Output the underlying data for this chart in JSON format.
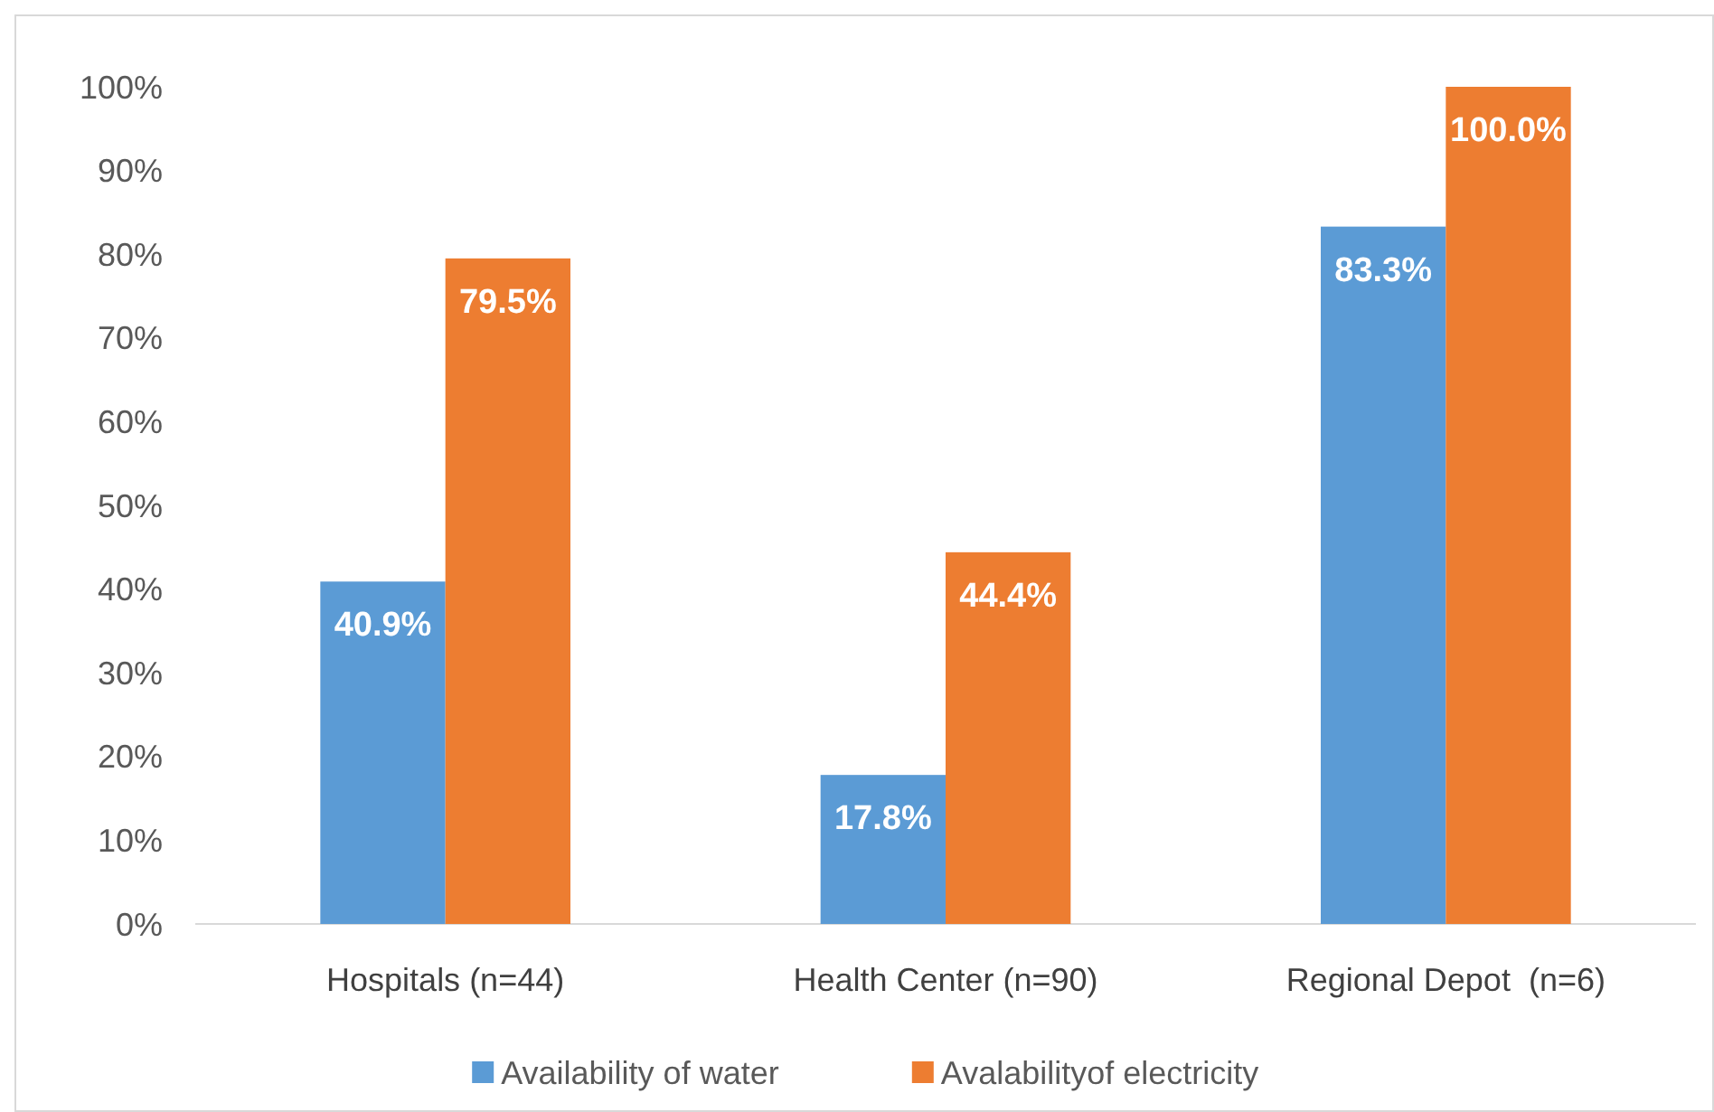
{
  "chart_data": {
    "type": "bar",
    "categories": [
      "Hospitals (n=44)",
      "Health Center (n=90)",
      "Regional Depot  (n=6)"
    ],
    "series": [
      {
        "name": "Availability of water",
        "color": "#5b9bd5",
        "values": [
          40.9,
          17.8,
          83.3
        ],
        "value_labels": [
          "40.9%",
          "17.8%",
          "83.3%"
        ]
      },
      {
        "name": "Avalabilityof electricity",
        "color": "#ed7d31",
        "values": [
          79.5,
          44.4,
          100.0
        ],
        "value_labels": [
          "79.5%",
          "44.4%",
          "100.0%"
        ]
      }
    ],
    "ylim": [
      0,
      100
    ],
    "yticks": [
      {
        "value": 0,
        "label": "0%"
      },
      {
        "value": 10,
        "label": "10%"
      },
      {
        "value": 20,
        "label": "20%"
      },
      {
        "value": 30,
        "label": "30%"
      },
      {
        "value": 40,
        "label": "40%"
      },
      {
        "value": 50,
        "label": "50%"
      },
      {
        "value": 60,
        "label": "60%"
      },
      {
        "value": 70,
        "label": "70%"
      },
      {
        "value": 80,
        "label": "80%"
      },
      {
        "value": 90,
        "label": "90%"
      },
      {
        "value": 100,
        "label": "100%"
      }
    ],
    "grid": false,
    "legend": "bottom"
  }
}
